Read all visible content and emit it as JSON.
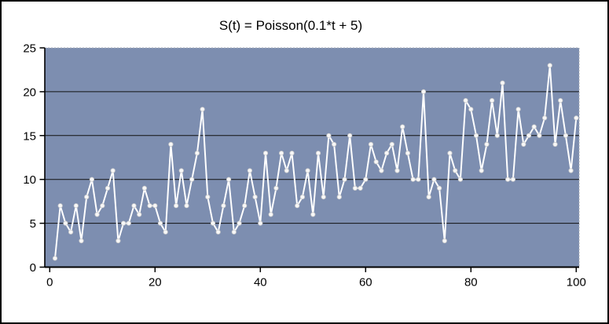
{
  "window": {
    "background": "#ffffff",
    "border_color": "#000000"
  },
  "chart_data": {
    "type": "line",
    "title": "S(t) = Poisson(0.1*t + 5)",
    "xlabel": "",
    "ylabel": "",
    "xlim": [
      0,
      100
    ],
    "ylim": [
      0,
      25
    ],
    "x_ticks": [
      0,
      20,
      40,
      60,
      80,
      100
    ],
    "y_ticks": [
      0,
      5,
      10,
      15,
      20,
      25
    ],
    "grid": "horizontal",
    "legend_position": "none",
    "plot_bg_color": "#7d8eb0",
    "line_color": "#ffffff",
    "marker_fill": "#f8f8f8",
    "marker_edge": "#cccccc",
    "gridline_color": "#111111",
    "axis_color": "#000000",
    "plot_border_color": "#a8aeb8",
    "x": [
      1,
      2,
      3,
      4,
      5,
      6,
      7,
      8,
      9,
      10,
      11,
      12,
      13,
      14,
      15,
      16,
      17,
      18,
      19,
      20,
      21,
      22,
      23,
      24,
      25,
      26,
      27,
      28,
      29,
      30,
      31,
      32,
      33,
      34,
      35,
      36,
      37,
      38,
      39,
      40,
      41,
      42,
      43,
      44,
      45,
      46,
      47,
      48,
      49,
      50,
      51,
      52,
      53,
      54,
      55,
      56,
      57,
      58,
      59,
      60,
      61,
      62,
      63,
      64,
      65,
      66,
      67,
      68,
      69,
      70,
      71,
      72,
      73,
      74,
      75,
      76,
      77,
      78,
      79,
      80,
      81,
      82,
      83,
      84,
      85,
      86,
      87,
      88,
      89,
      90,
      91,
      92,
      93,
      94,
      95,
      96,
      97,
      98,
      99,
      100
    ],
    "values": [
      1,
      7,
      5,
      4,
      7,
      3,
      8,
      10,
      6,
      7,
      9,
      11,
      3,
      5,
      5,
      7,
      6,
      9,
      7,
      7,
      5,
      4,
      14,
      7,
      11,
      7,
      10,
      13,
      18,
      8,
      5,
      4,
      7,
      10,
      4,
      5,
      7,
      11,
      8,
      5,
      13,
      6,
      9,
      13,
      11,
      13,
      7,
      8,
      11,
      6,
      13,
      8,
      15,
      14,
      8,
      10,
      15,
      9,
      9,
      10,
      14,
      12,
      11,
      13,
      14,
      11,
      16,
      13,
      10,
      10,
      20,
      8,
      10,
      9,
      3,
      13,
      11,
      10,
      19,
      18,
      15,
      11,
      14,
      19,
      15,
      21,
      10,
      10,
      18,
      14,
      15,
      16,
      15,
      17,
      23,
      14,
      19,
      15,
      11,
      17
    ]
  }
}
